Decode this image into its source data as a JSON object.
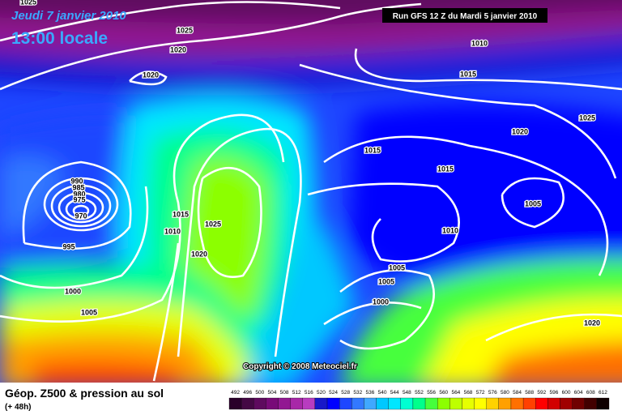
{
  "header": {
    "date": "Jeudi 7 janvier 2010",
    "time": "13:00 locale",
    "run": "Run GFS 12 Z du Mardi 5 janvier 2010"
  },
  "copyright": "Copyright © 2008 Meteociel.fr",
  "footer": {
    "title": "Géop. Z500 & pression au sol",
    "subtitle": "(+ 48h)"
  },
  "legend": {
    "values": [
      492,
      496,
      500,
      504,
      508,
      512,
      516,
      520,
      524,
      528,
      532,
      536,
      540,
      544,
      548,
      552,
      556,
      560,
      564,
      568,
      572,
      576,
      580,
      584,
      588,
      592,
      596,
      600,
      604,
      608,
      612
    ],
    "colors": [
      "#2a002a",
      "#440844",
      "#5e0a5e",
      "#780a78",
      "#921892",
      "#a828a8",
      "#b83cc0",
      "#1818c8",
      "#0000ff",
      "#1e46ff",
      "#3278ff",
      "#40a8ff",
      "#00c8ff",
      "#00e6ff",
      "#00ffd2",
      "#00ff8c",
      "#46ff3c",
      "#8cff00",
      "#beff00",
      "#e6ff00",
      "#ffff00",
      "#ffd200",
      "#ffa000",
      "#ff7000",
      "#ff4000",
      "#ff0000",
      "#d20000",
      "#a00000",
      "#700000",
      "#420000",
      "#100000"
    ]
  },
  "isobar_labels": [
    "1025",
    "1025",
    "1020",
    "1020",
    "1010",
    "1015",
    "1025",
    "1020",
    "1015",
    "1015",
    "1005",
    "990",
    "985",
    "980",
    "975",
    "970",
    "995",
    "1015",
    "1025",
    "1010",
    "1020",
    "1010",
    "1005",
    "1005",
    "1000",
    "1000",
    "1005",
    "1020"
  ]
}
